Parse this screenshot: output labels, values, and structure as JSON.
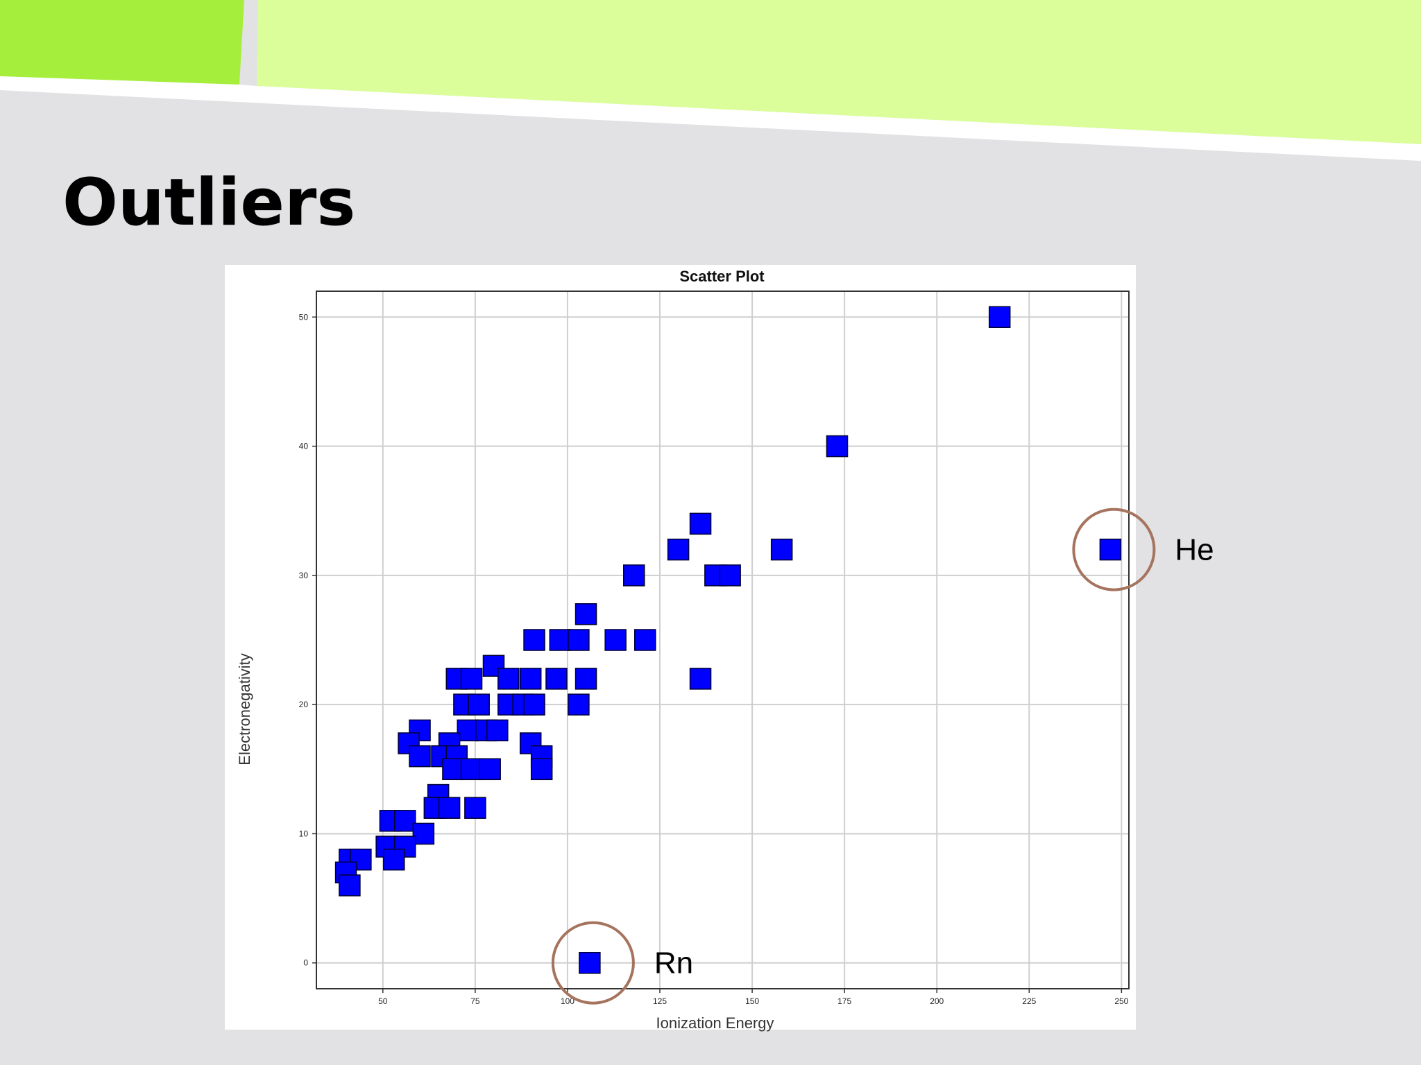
{
  "slide": {
    "title": "Outliers",
    "banner_colors": [
      "#a5ef3c",
      "#dbfe9a",
      "#ffffff"
    ],
    "background": "#e2e1e3"
  },
  "chart_data": {
    "type": "scatter",
    "title": "Scatter Plot",
    "xlabel": "Ionization Energy",
    "ylabel": "Electronegativity",
    "xlim": [
      32,
      252
    ],
    "ylim": [
      -2,
      52
    ],
    "xticks": [
      50,
      75,
      100,
      125,
      150,
      175,
      200,
      225,
      250
    ],
    "yticks": [
      0,
      10,
      20,
      30,
      40,
      50
    ],
    "grid": true,
    "marker": "square",
    "marker_color": "#0000ff",
    "marker_edge": "#000033",
    "points": [
      [
        217,
        50
      ],
      [
        173,
        40
      ],
      [
        136,
        34
      ],
      [
        130,
        32
      ],
      [
        158,
        32
      ],
      [
        247,
        32
      ],
      [
        118,
        30
      ],
      [
        140,
        30
      ],
      [
        144,
        30
      ],
      [
        105,
        27
      ],
      [
        91,
        25
      ],
      [
        98,
        25
      ],
      [
        103,
        25
      ],
      [
        113,
        25
      ],
      [
        121,
        25
      ],
      [
        80,
        23
      ],
      [
        70,
        22
      ],
      [
        74,
        22
      ],
      [
        84,
        22
      ],
      [
        90,
        22
      ],
      [
        97,
        22
      ],
      [
        105,
        22
      ],
      [
        136,
        22
      ],
      [
        72,
        20
      ],
      [
        76,
        20
      ],
      [
        84,
        20
      ],
      [
        88,
        20
      ],
      [
        91,
        20
      ],
      [
        103,
        20
      ],
      [
        60,
        18
      ],
      [
        73,
        18
      ],
      [
        78,
        18
      ],
      [
        81,
        18
      ],
      [
        57,
        17
      ],
      [
        68,
        17
      ],
      [
        90,
        17
      ],
      [
        60,
        16
      ],
      [
        66,
        16
      ],
      [
        70,
        16
      ],
      [
        93,
        16
      ],
      [
        69,
        15
      ],
      [
        74,
        15
      ],
      [
        79,
        15
      ],
      [
        93,
        15
      ],
      [
        65,
        13
      ],
      [
        64,
        12
      ],
      [
        68,
        12
      ],
      [
        75,
        12
      ],
      [
        52,
        11
      ],
      [
        56,
        11
      ],
      [
        61,
        10
      ],
      [
        51,
        9
      ],
      [
        56,
        9
      ],
      [
        41,
        8
      ],
      [
        44,
        8
      ],
      [
        53,
        8
      ],
      [
        40,
        7
      ],
      [
        41,
        6
      ],
      [
        106,
        0
      ]
    ],
    "annotations": [
      {
        "label": "He",
        "point": [
          247,
          32
        ],
        "circle_color": "#a5735e"
      },
      {
        "label": "Rn",
        "point": [
          106,
          0
        ],
        "circle_color": "#a5735e"
      }
    ]
  }
}
